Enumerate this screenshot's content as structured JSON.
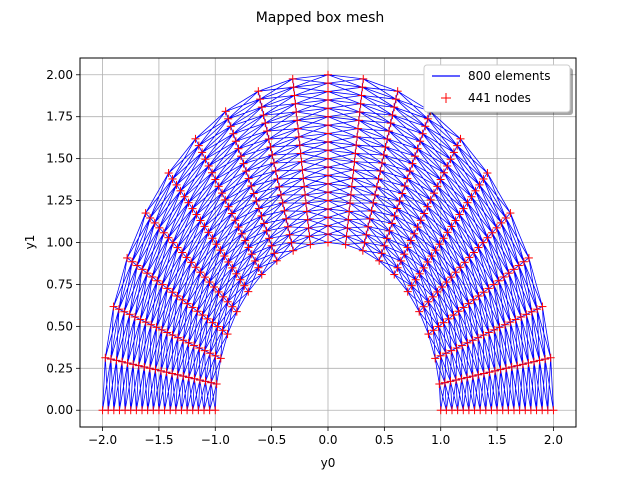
{
  "chart_data": {
    "type": "mesh",
    "title": "Mapped box mesh",
    "xlabel": "y0",
    "ylabel": "y1",
    "xlim": [
      -2.2,
      2.2
    ],
    "ylim": [
      -0.1,
      2.1
    ],
    "xticks": [
      -2.0,
      -1.5,
      -1.0,
      -0.5,
      0.0,
      0.5,
      1.0,
      1.5,
      2.0
    ],
    "yticks": [
      0.0,
      0.25,
      0.5,
      0.75,
      1.0,
      1.25,
      1.5,
      1.75,
      2.0
    ],
    "xtick_labels": [
      "−2.0",
      "−1.5",
      "−1.0",
      "−0.5",
      "0.0",
      "0.5",
      "1.0",
      "1.5",
      "2.0"
    ],
    "ytick_labels": [
      "0.00",
      "0.25",
      "0.50",
      "0.75",
      "1.00",
      "1.25",
      "1.50",
      "1.75",
      "2.00"
    ],
    "grid": true,
    "legend_position": "top-right",
    "mesh": {
      "inner_radius": 1.0,
      "outer_radius": 2.0,
      "angle_start_deg": 0,
      "angle_end_deg": 180,
      "radial_divisions": 20,
      "angular_divisions": 20,
      "element_count": 800,
      "node_count": 441
    },
    "series": [
      {
        "name": "800 elements",
        "color": "#0000ff",
        "marker": "line"
      },
      {
        "name": "441 nodes",
        "color": "#ff0000",
        "marker": "plus"
      }
    ]
  }
}
